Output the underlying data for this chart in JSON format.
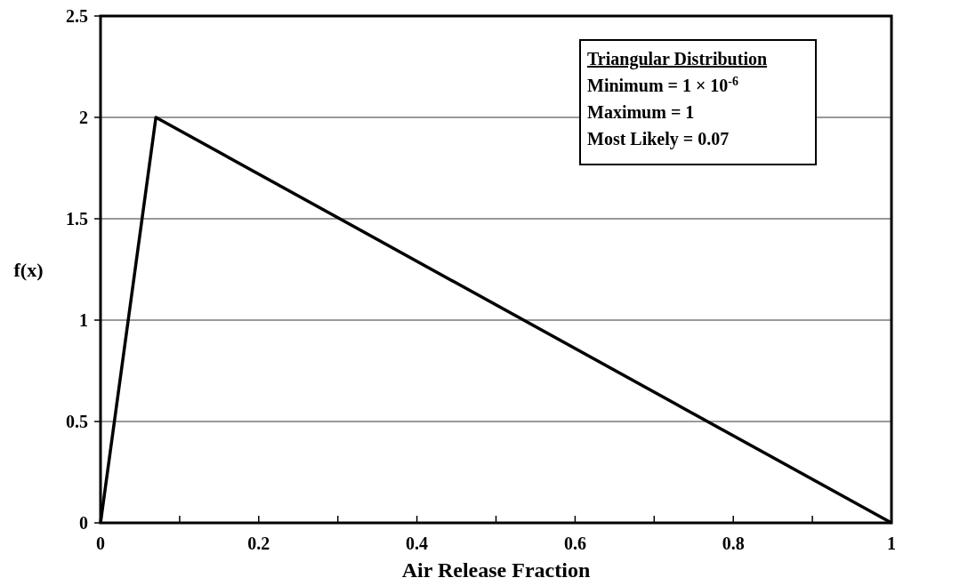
{
  "chart_data": {
    "type": "line",
    "xlabel": "Air Release Fraction",
    "ylabel": "f(x)",
    "x": [
      1e-06,
      0.07,
      1
    ],
    "series": [
      {
        "color": "#000000",
        "values": [
          0,
          2,
          0
        ]
      }
    ],
    "xlim": [
      0,
      1
    ],
    "xticks": [
      0,
      {
        "value": 0.1,
        "label": null
      },
      0.2,
      {
        "value": 0.3,
        "label": null
      },
      0.4,
      {
        "value": 0.5,
        "label": null
      },
      0.6,
      {
        "value": 0.7,
        "label": null
      },
      0.8,
      {
        "value": 0.9,
        "label": null
      },
      1
    ],
    "ylim": [
      0,
      2.5
    ],
    "yticks": [
      0,
      0.5,
      1,
      1.5,
      2,
      2.5
    ],
    "grid": "y",
    "marker": "none",
    "line_style": "solid",
    "annotations": [
      "Triangular Distribution",
      "Minimum = 1 × 10$^{-6}$",
      "Maximum = 1",
      "Most Likely = 0.07"
    ]
  }
}
